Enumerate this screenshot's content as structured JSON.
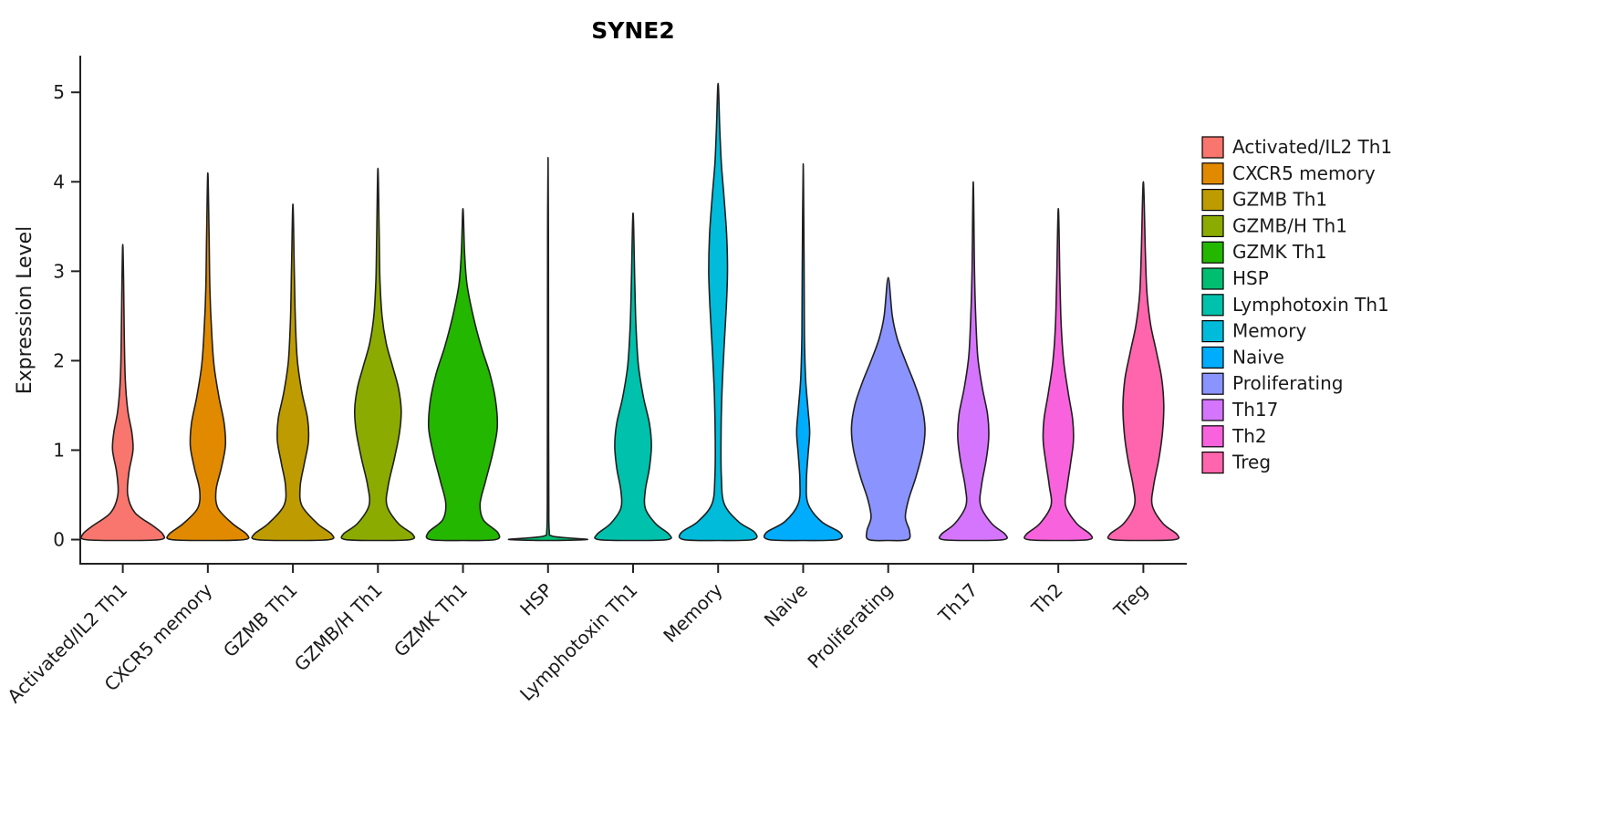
{
  "chart_data": {
    "type": "violin",
    "title": "SYNE2",
    "ylabel": "Expression Level",
    "xlabel": "",
    "ylim": [
      0,
      5.1
    ],
    "yticks": [
      0,
      1,
      2,
      3,
      4,
      5
    ],
    "legend_position": "right",
    "categories": [
      "Activated/IL2 Th1",
      "CXCR5 memory",
      "GZMB Th1",
      "GZMB/H Th1",
      "GZMK Th1",
      "HSP",
      "Lymphotoxin Th1",
      "Memory",
      "Naive",
      "Proliferating",
      "Th17",
      "Th2",
      "Treg"
    ],
    "colors": [
      "#F8766D",
      "#E18A00",
      "#BE9C00",
      "#8CAB00",
      "#24B700",
      "#00BE70",
      "#00C1AB",
      "#00BBDA",
      "#00ACFC",
      "#8B93FF",
      "#D575FE",
      "#F962DD",
      "#FF65AC"
    ],
    "violins": [
      {
        "category": "Activated/IL2 Th1",
        "color": "#F8766D",
        "max_expression": 3.3,
        "profile": [
          [
            0,
            0.92
          ],
          [
            0.06,
            0.98
          ],
          [
            0.15,
            0.75
          ],
          [
            0.3,
            0.3
          ],
          [
            0.5,
            0.12
          ],
          [
            0.75,
            0.15
          ],
          [
            1.0,
            0.25
          ],
          [
            1.2,
            0.22
          ],
          [
            1.45,
            0.12
          ],
          [
            1.8,
            0.06
          ],
          [
            2.3,
            0.035
          ],
          [
            2.9,
            0.02
          ],
          [
            3.3,
            0
          ]
        ]
      },
      {
        "category": "CXCR5 memory",
        "color": "#E18A00",
        "max_expression": 4.1,
        "profile": [
          [
            0,
            0.9
          ],
          [
            0.06,
            0.95
          ],
          [
            0.18,
            0.6
          ],
          [
            0.35,
            0.25
          ],
          [
            0.55,
            0.2
          ],
          [
            0.8,
            0.33
          ],
          [
            1.05,
            0.43
          ],
          [
            1.3,
            0.4
          ],
          [
            1.6,
            0.27
          ],
          [
            1.95,
            0.15
          ],
          [
            2.35,
            0.09
          ],
          [
            2.8,
            0.05
          ],
          [
            3.4,
            0.03
          ],
          [
            4.1,
            0
          ]
        ]
      },
      {
        "category": "GZMB Th1",
        "color": "#BE9C00",
        "max_expression": 3.75,
        "profile": [
          [
            0,
            0.9
          ],
          [
            0.06,
            0.95
          ],
          [
            0.18,
            0.6
          ],
          [
            0.38,
            0.22
          ],
          [
            0.6,
            0.18
          ],
          [
            0.85,
            0.28
          ],
          [
            1.1,
            0.38
          ],
          [
            1.35,
            0.36
          ],
          [
            1.65,
            0.22
          ],
          [
            2.0,
            0.11
          ],
          [
            2.45,
            0.06
          ],
          [
            3.0,
            0.035
          ],
          [
            3.75,
            0
          ]
        ]
      },
      {
        "category": "GZMB/H Th1",
        "color": "#8CAB00",
        "max_expression": 4.15,
        "profile": [
          [
            0,
            0.8
          ],
          [
            0.06,
            0.85
          ],
          [
            0.18,
            0.5
          ],
          [
            0.38,
            0.22
          ],
          [
            0.6,
            0.25
          ],
          [
            0.9,
            0.4
          ],
          [
            1.2,
            0.53
          ],
          [
            1.45,
            0.57
          ],
          [
            1.7,
            0.5
          ],
          [
            1.95,
            0.35
          ],
          [
            2.2,
            0.2
          ],
          [
            2.5,
            0.1
          ],
          [
            2.9,
            0.05
          ],
          [
            3.4,
            0.03
          ],
          [
            4.15,
            0
          ]
        ]
      },
      {
        "category": "GZMK Th1",
        "color": "#24B700",
        "max_expression": 3.7,
        "profile": [
          [
            0,
            0.8
          ],
          [
            0.08,
            0.85
          ],
          [
            0.22,
            0.5
          ],
          [
            0.4,
            0.42
          ],
          [
            0.65,
            0.55
          ],
          [
            0.95,
            0.72
          ],
          [
            1.25,
            0.84
          ],
          [
            1.55,
            0.8
          ],
          [
            1.85,
            0.66
          ],
          [
            2.15,
            0.45
          ],
          [
            2.5,
            0.25
          ],
          [
            2.85,
            0.1
          ],
          [
            3.2,
            0.04
          ],
          [
            3.7,
            0
          ]
        ]
      },
      {
        "category": "HSP",
        "color": "#00BE70",
        "max_expression": 4.27,
        "profile": [
          [
            0,
            0.95
          ],
          [
            0.015,
            0.6
          ],
          [
            0.04,
            0.1
          ],
          [
            0.1,
            0.03
          ],
          [
            0.4,
            0.018
          ],
          [
            1.2,
            0.014
          ],
          [
            2.4,
            0.012
          ],
          [
            3.4,
            0.01
          ],
          [
            4.27,
            0
          ]
        ]
      },
      {
        "category": "Lymphotoxin Th1",
        "color": "#00C1AB",
        "max_expression": 3.65,
        "profile": [
          [
            0,
            0.85
          ],
          [
            0.06,
            0.88
          ],
          [
            0.18,
            0.55
          ],
          [
            0.35,
            0.3
          ],
          [
            0.55,
            0.3
          ],
          [
            0.8,
            0.4
          ],
          [
            1.05,
            0.45
          ],
          [
            1.3,
            0.4
          ],
          [
            1.6,
            0.25
          ],
          [
            1.95,
            0.13
          ],
          [
            2.4,
            0.07
          ],
          [
            2.9,
            0.04
          ],
          [
            3.65,
            0
          ]
        ]
      },
      {
        "category": "Memory",
        "color": "#00BBDA",
        "max_expression": 5.1,
        "profile": [
          [
            0,
            0.85
          ],
          [
            0.08,
            0.9
          ],
          [
            0.2,
            0.5
          ],
          [
            0.4,
            0.15
          ],
          [
            0.7,
            0.08
          ],
          [
            1.1,
            0.07
          ],
          [
            1.6,
            0.09
          ],
          [
            2.1,
            0.14
          ],
          [
            2.6,
            0.2
          ],
          [
            3.0,
            0.23
          ],
          [
            3.4,
            0.21
          ],
          [
            3.8,
            0.15
          ],
          [
            4.2,
            0.08
          ],
          [
            4.6,
            0.04
          ],
          [
            5.1,
            0
          ]
        ]
      },
      {
        "category": "Naive",
        "color": "#00ACFC",
        "max_expression": 4.2,
        "profile": [
          [
            0,
            0.85
          ],
          [
            0.08,
            0.9
          ],
          [
            0.2,
            0.45
          ],
          [
            0.4,
            0.12
          ],
          [
            0.65,
            0.08
          ],
          [
            0.95,
            0.12
          ],
          [
            1.2,
            0.16
          ],
          [
            1.45,
            0.12
          ],
          [
            1.8,
            0.06
          ],
          [
            2.3,
            0.03
          ],
          [
            3.2,
            0.02
          ],
          [
            4.2,
            0
          ]
        ]
      },
      {
        "category": "Proliferating",
        "color": "#8B93FF",
        "max_expression": 2.93,
        "profile": [
          [
            0,
            0.48
          ],
          [
            0.1,
            0.52
          ],
          [
            0.25,
            0.42
          ],
          [
            0.45,
            0.5
          ],
          [
            0.7,
            0.68
          ],
          [
            1.0,
            0.85
          ],
          [
            1.25,
            0.9
          ],
          [
            1.5,
            0.82
          ],
          [
            1.75,
            0.64
          ],
          [
            2.0,
            0.42
          ],
          [
            2.25,
            0.22
          ],
          [
            2.5,
            0.1
          ],
          [
            2.93,
            0
          ]
        ]
      },
      {
        "category": "Th17",
        "color": "#D575FE",
        "max_expression": 4.0,
        "profile": [
          [
            0,
            0.75
          ],
          [
            0.06,
            0.78
          ],
          [
            0.18,
            0.45
          ],
          [
            0.38,
            0.18
          ],
          [
            0.6,
            0.2
          ],
          [
            0.9,
            0.32
          ],
          [
            1.15,
            0.38
          ],
          [
            1.4,
            0.35
          ],
          [
            1.7,
            0.22
          ],
          [
            2.05,
            0.11
          ],
          [
            2.5,
            0.06
          ],
          [
            3.0,
            0.03
          ],
          [
            4.0,
            0
          ]
        ]
      },
      {
        "category": "Th2",
        "color": "#F962DD",
        "max_expression": 3.7,
        "profile": [
          [
            0,
            0.75
          ],
          [
            0.06,
            0.78
          ],
          [
            0.18,
            0.45
          ],
          [
            0.38,
            0.18
          ],
          [
            0.6,
            0.22
          ],
          [
            0.85,
            0.3
          ],
          [
            1.1,
            0.37
          ],
          [
            1.35,
            0.35
          ],
          [
            1.65,
            0.24
          ],
          [
            2.0,
            0.13
          ],
          [
            2.4,
            0.07
          ],
          [
            2.9,
            0.04
          ],
          [
            3.7,
            0
          ]
        ]
      },
      {
        "category": "Treg",
        "color": "#FF65AC",
        "max_expression": 4.0,
        "profile": [
          [
            0,
            0.78
          ],
          [
            0.06,
            0.82
          ],
          [
            0.18,
            0.48
          ],
          [
            0.38,
            0.22
          ],
          [
            0.6,
            0.25
          ],
          [
            0.9,
            0.38
          ],
          [
            1.2,
            0.47
          ],
          [
            1.5,
            0.5
          ],
          [
            1.8,
            0.45
          ],
          [
            2.1,
            0.32
          ],
          [
            2.4,
            0.18
          ],
          [
            2.75,
            0.09
          ],
          [
            3.2,
            0.05
          ],
          [
            4.0,
            0
          ]
        ]
      }
    ]
  }
}
